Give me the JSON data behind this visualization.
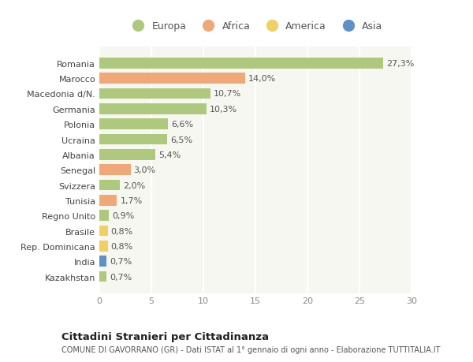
{
  "countries": [
    "Romania",
    "Marocco",
    "Macedonia d/N.",
    "Germania",
    "Polonia",
    "Ucraina",
    "Albania",
    "Senegal",
    "Svizzera",
    "Tunisia",
    "Regno Unito",
    "Brasile",
    "Rep. Dominicana",
    "India",
    "Kazakhstan"
  ],
  "values": [
    27.3,
    14.0,
    10.7,
    10.3,
    6.6,
    6.5,
    5.4,
    3.0,
    2.0,
    1.7,
    0.9,
    0.8,
    0.8,
    0.7,
    0.7
  ],
  "labels": [
    "27,3%",
    "14,0%",
    "10,7%",
    "10,3%",
    "6,6%",
    "6,5%",
    "5,4%",
    "3,0%",
    "2,0%",
    "1,7%",
    "0,9%",
    "0,8%",
    "0,8%",
    "0,7%",
    "0,7%"
  ],
  "continents": [
    "Europa",
    "Africa",
    "Europa",
    "Europa",
    "Europa",
    "Europa",
    "Europa",
    "Africa",
    "Europa",
    "Africa",
    "Europa",
    "America",
    "America",
    "Asia",
    "Europa"
  ],
  "continent_colors": {
    "Europa": "#aec97e",
    "Africa": "#f0a878",
    "America": "#f0d060",
    "Asia": "#6090c8"
  },
  "legend_order": [
    "Europa",
    "Africa",
    "America",
    "Asia"
  ],
  "xlim": [
    0,
    30
  ],
  "xticks": [
    0,
    5,
    10,
    15,
    20,
    25,
    30
  ],
  "title": "Cittadini Stranieri per Cittadinanza",
  "subtitle": "COMUNE DI GAVORRANO (GR) - Dati ISTAT al 1° gennaio di ogni anno - Elaborazione TUTTITALIA.IT",
  "background_color": "#ffffff",
  "plot_bg_color": "#f7f7f2",
  "bar_height": 0.7,
  "grid_color": "#ffffff",
  "label_fontsize": 8,
  "ytick_fontsize": 8
}
